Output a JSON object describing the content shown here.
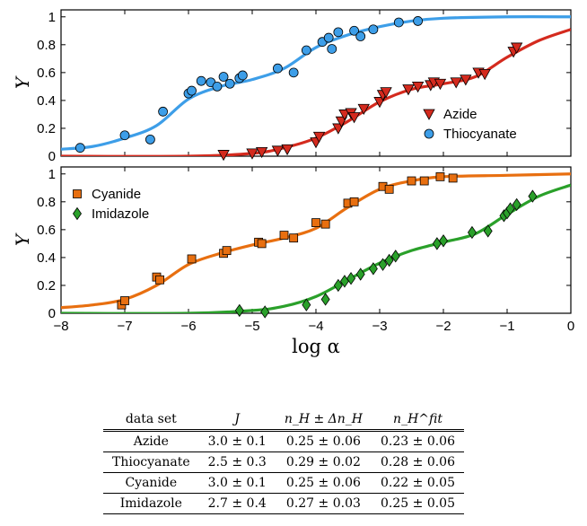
{
  "chart_data": [
    {
      "type": "scatter",
      "panel": "top",
      "ylabel": "Y",
      "xlim": [
        -8,
        0
      ],
      "ylim": [
        0,
        1.05
      ],
      "yticks": [
        0,
        0.2,
        0.4,
        0.6,
        0.8,
        1
      ],
      "ytick_labels": [
        "0",
        "0.2",
        "0.4",
        "0.6",
        "0.8",
        "1"
      ],
      "legend_position": "lower-right",
      "series": [
        {
          "name": "Azide",
          "color": "#d42a1e",
          "marker": "triangle-down",
          "points": [
            [
              -5.45,
              0.01
            ],
            [
              -5.0,
              0.02
            ],
            [
              -4.85,
              0.03
            ],
            [
              -4.6,
              0.04
            ],
            [
              -4.45,
              0.05
            ],
            [
              -4.0,
              0.1
            ],
            [
              -3.95,
              0.14
            ],
            [
              -3.65,
              0.2
            ],
            [
              -3.6,
              0.25
            ],
            [
              -3.55,
              0.3
            ],
            [
              -3.45,
              0.31
            ],
            [
              -3.4,
              0.28
            ],
            [
              -3.25,
              0.34
            ],
            [
              -3.0,
              0.39
            ],
            [
              -2.95,
              0.44
            ],
            [
              -2.9,
              0.46
            ],
            [
              -2.55,
              0.48
            ],
            [
              -2.4,
              0.5
            ],
            [
              -2.2,
              0.51
            ],
            [
              -2.15,
              0.53
            ],
            [
              -2.05,
              0.52
            ],
            [
              -1.8,
              0.53
            ],
            [
              -1.65,
              0.55
            ],
            [
              -1.45,
              0.6
            ],
            [
              -1.35,
              0.59
            ],
            [
              -0.9,
              0.75
            ],
            [
              -0.85,
              0.78
            ]
          ],
          "curve": [
            [
              -8,
              0.0
            ],
            [
              -6,
              0.0
            ],
            [
              -5,
              0.02
            ],
            [
              -4.5,
              0.06
            ],
            [
              -4,
              0.13
            ],
            [
              -3.5,
              0.25
            ],
            [
              -3,
              0.39
            ],
            [
              -2.5,
              0.48
            ],
            [
              -2,
              0.52
            ],
            [
              -1.5,
              0.57
            ],
            [
              -1,
              0.71
            ],
            [
              -0.5,
              0.83
            ],
            [
              0,
              0.91
            ]
          ]
        },
        {
          "name": "Thiocyanate",
          "color": "#3d9ee8",
          "marker": "circle",
          "points": [
            [
              -7.7,
              0.06
            ],
            [
              -7.0,
              0.15
            ],
            [
              -6.6,
              0.12
            ],
            [
              -6.4,
              0.32
            ],
            [
              -6.0,
              0.45
            ],
            [
              -5.95,
              0.47
            ],
            [
              -5.8,
              0.54
            ],
            [
              -5.65,
              0.53
            ],
            [
              -5.55,
              0.5
            ],
            [
              -5.45,
              0.57
            ],
            [
              -5.35,
              0.52
            ],
            [
              -5.2,
              0.56
            ],
            [
              -5.15,
              0.58
            ],
            [
              -4.6,
              0.63
            ],
            [
              -4.35,
              0.6
            ],
            [
              -4.15,
              0.76
            ],
            [
              -3.9,
              0.82
            ],
            [
              -3.8,
              0.85
            ],
            [
              -3.75,
              0.77
            ],
            [
              -3.65,
              0.89
            ],
            [
              -3.4,
              0.9
            ],
            [
              -3.3,
              0.86
            ],
            [
              -3.1,
              0.91
            ],
            [
              -2.7,
              0.96
            ],
            [
              -2.4,
              0.97
            ]
          ],
          "curve": [
            [
              -8,
              0.05
            ],
            [
              -7.5,
              0.07
            ],
            [
              -7,
              0.13
            ],
            [
              -6.5,
              0.22
            ],
            [
              -6,
              0.41
            ],
            [
              -5.5,
              0.5
            ],
            [
              -5,
              0.55
            ],
            [
              -4.5,
              0.63
            ],
            [
              -4,
              0.78
            ],
            [
              -3.5,
              0.87
            ],
            [
              -3,
              0.93
            ],
            [
              -2.5,
              0.97
            ],
            [
              -2,
              0.99
            ],
            [
              -1,
              1.0
            ],
            [
              0,
              1.0
            ]
          ]
        }
      ]
    },
    {
      "type": "scatter",
      "panel": "bottom",
      "ylabel": "Y",
      "xlabel": "log α",
      "xlim": [
        -8,
        0
      ],
      "ylim": [
        0,
        1.05
      ],
      "xticks": [
        -8,
        -7,
        -6,
        -5,
        -4,
        -3,
        -2,
        -1,
        0
      ],
      "xtick_labels": [
        "−8",
        "−7",
        "−6",
        "−5",
        "−4",
        "−3",
        "−2",
        "−1",
        "0"
      ],
      "yticks": [
        0,
        0.2,
        0.4,
        0.6,
        0.8,
        1
      ],
      "ytick_labels": [
        "0",
        "0.2",
        "0.4",
        "0.6",
        "0.8",
        "1"
      ],
      "legend_position": "upper-left",
      "series": [
        {
          "name": "Cyanide",
          "color": "#e86f10",
          "marker": "square",
          "points": [
            [
              -7.05,
              0.06
            ],
            [
              -7.0,
              0.09
            ],
            [
              -6.5,
              0.26
            ],
            [
              -6.45,
              0.24
            ],
            [
              -5.95,
              0.39
            ],
            [
              -5.45,
              0.43
            ],
            [
              -5.4,
              0.45
            ],
            [
              -4.9,
              0.51
            ],
            [
              -4.85,
              0.5
            ],
            [
              -4.5,
              0.56
            ],
            [
              -4.35,
              0.54
            ],
            [
              -4.0,
              0.65
            ],
            [
              -3.85,
              0.64
            ],
            [
              -3.5,
              0.79
            ],
            [
              -3.4,
              0.8
            ],
            [
              -2.95,
              0.91
            ],
            [
              -2.85,
              0.89
            ],
            [
              -2.5,
              0.95
            ],
            [
              -2.3,
              0.95
            ],
            [
              -2.05,
              0.98
            ],
            [
              -1.85,
              0.97
            ]
          ],
          "curve": [
            [
              -8,
              0.04
            ],
            [
              -7.5,
              0.06
            ],
            [
              -7,
              0.1
            ],
            [
              -6.5,
              0.2
            ],
            [
              -6,
              0.35
            ],
            [
              -5.5,
              0.43
            ],
            [
              -5,
              0.49
            ],
            [
              -4.5,
              0.54
            ],
            [
              -4,
              0.61
            ],
            [
              -3.5,
              0.76
            ],
            [
              -3,
              0.89
            ],
            [
              -2.5,
              0.95
            ],
            [
              -2,
              0.98
            ],
            [
              -1,
              0.99
            ],
            [
              0,
              1.0
            ]
          ]
        },
        {
          "name": "Imidazole",
          "color": "#2aa02a",
          "marker": "diamond",
          "points": [
            [
              -5.2,
              0.02
            ],
            [
              -4.8,
              0.01
            ],
            [
              -4.15,
              0.06
            ],
            [
              -3.85,
              0.1
            ],
            [
              -3.65,
              0.2
            ],
            [
              -3.55,
              0.23
            ],
            [
              -3.45,
              0.25
            ],
            [
              -3.3,
              0.28
            ],
            [
              -3.1,
              0.32
            ],
            [
              -2.95,
              0.35
            ],
            [
              -2.85,
              0.38
            ],
            [
              -2.75,
              0.41
            ],
            [
              -2.1,
              0.5
            ],
            [
              -2.0,
              0.52
            ],
            [
              -1.55,
              0.58
            ],
            [
              -1.3,
              0.59
            ],
            [
              -1.05,
              0.7
            ],
            [
              -1.0,
              0.72
            ],
            [
              -0.95,
              0.75
            ],
            [
              -0.85,
              0.78
            ],
            [
              -0.6,
              0.84
            ]
          ],
          "curve": [
            [
              -8,
              0.0
            ],
            [
              -6,
              0.0
            ],
            [
              -5,
              0.02
            ],
            [
              -4.5,
              0.05
            ],
            [
              -4,
              0.12
            ],
            [
              -3.5,
              0.24
            ],
            [
              -3,
              0.36
            ],
            [
              -2.5,
              0.45
            ],
            [
              -2,
              0.51
            ],
            [
              -1.5,
              0.57
            ],
            [
              -1,
              0.71
            ],
            [
              -0.5,
              0.84
            ],
            [
              0,
              0.92
            ]
          ]
        }
      ]
    },
    {
      "type": "table",
      "columns": [
        "data set",
        "J",
        "n_H ± Δn_H",
        "n_H^fit"
      ],
      "rows": [
        [
          "Azide",
          "3.0 ± 0.1",
          "0.25 ± 0.06",
          "0.23 ± 0.06"
        ],
        [
          "Thiocyanate",
          "2.5 ± 0.3",
          "0.29 ± 0.02",
          "0.28 ± 0.06"
        ],
        [
          "Cyanide",
          "3.0 ± 0.1",
          "0.25 ± 0.06",
          "0.22 ± 0.05"
        ],
        [
          "Imidazole",
          "2.7 ± 0.4",
          "0.27 ± 0.03",
          "0.25 ± 0.05"
        ]
      ]
    }
  ]
}
